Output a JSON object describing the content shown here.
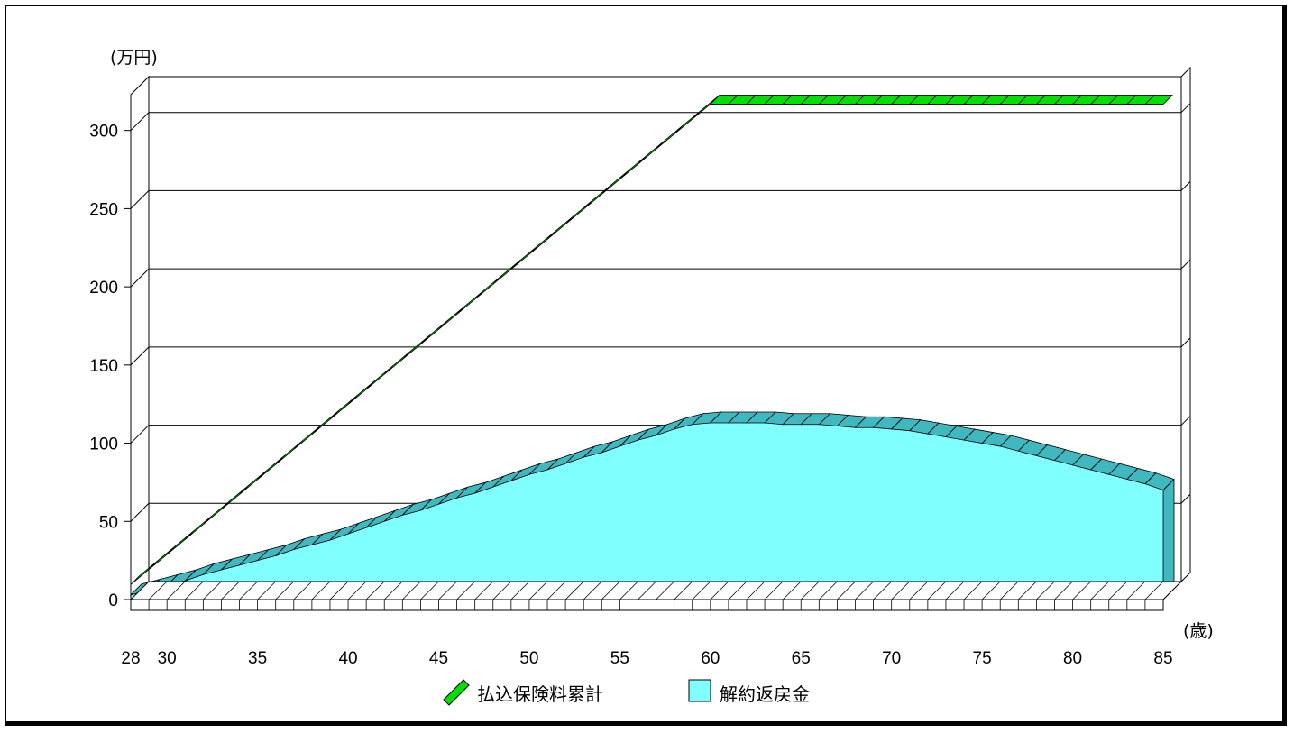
{
  "chart_data": {
    "type": "area",
    "ylabel_unit": "(万円)",
    "xlabel_unit": "(歳)",
    "ylim": [
      0,
      320
    ],
    "xlim": [
      28,
      85
    ],
    "y_ticks": [
      0,
      50,
      100,
      150,
      200,
      250,
      300
    ],
    "x_ticks": [
      28,
      30,
      35,
      40,
      45,
      50,
      55,
      60,
      65,
      70,
      75,
      80,
      85
    ],
    "series": [
      {
        "name": "払込保険料累計",
        "color": "#00e000",
        "x": [
          28,
          29,
          30,
          31,
          32,
          33,
          34,
          35,
          36,
          37,
          38,
          39,
          40,
          41,
          42,
          43,
          44,
          45,
          46,
          47,
          48,
          49,
          50,
          51,
          52,
          53,
          54,
          55,
          56,
          57,
          58,
          59,
          60,
          61,
          62,
          63,
          64,
          65,
          66,
          67,
          68,
          69,
          70,
          71,
          72,
          73,
          74,
          75,
          76,
          77,
          78,
          79,
          80,
          81,
          82,
          83,
          84,
          85
        ],
        "values": [
          9.6,
          19.2,
          28.8,
          38.4,
          48.0,
          57.6,
          67.2,
          76.8,
          86.4,
          96.0,
          105.6,
          115.2,
          124.8,
          134.4,
          144.0,
          153.6,
          163.2,
          172.8,
          182.4,
          192.0,
          201.6,
          211.2,
          220.8,
          230.4,
          240.0,
          249.6,
          259.2,
          268.8,
          278.4,
          288.0,
          297.6,
          307.2,
          316.8,
          316.8,
          316.8,
          316.8,
          316.8,
          316.8,
          316.8,
          316.8,
          316.8,
          316.8,
          316.8,
          316.8,
          316.8,
          316.8,
          316.8,
          316.8,
          316.8,
          316.8,
          316.8,
          316.8,
          316.8,
          316.8,
          316.8,
          316.8,
          316.8,
          316.8
        ]
      },
      {
        "name": "解約返戻金",
        "color": "#80ffff",
        "x": [
          28,
          29,
          30,
          31,
          32,
          33,
          34,
          35,
          36,
          37,
          38,
          39,
          40,
          41,
          42,
          43,
          44,
          45,
          46,
          47,
          48,
          49,
          50,
          51,
          52,
          53,
          54,
          55,
          56,
          57,
          58,
          59,
          60,
          61,
          62,
          63,
          64,
          65,
          66,
          67,
          68,
          69,
          70,
          71,
          72,
          73,
          74,
          75,
          76,
          77,
          78,
          79,
          80,
          81,
          82,
          83,
          84,
          85
        ],
        "values": [
          3,
          6,
          9,
          12,
          16,
          19,
          22,
          25,
          28,
          32,
          35,
          38,
          42,
          46,
          50,
          54,
          57,
          61,
          65,
          68,
          72,
          76,
          80,
          83,
          87,
          91,
          94,
          98,
          102,
          105,
          109,
          112,
          113,
          113,
          113,
          113,
          112,
          112,
          112,
          111,
          110,
          110,
          109,
          108,
          106,
          104,
          102,
          100,
          98,
          95,
          92,
          89,
          86,
          83,
          80,
          77,
          74,
          70
        ]
      }
    ]
  }
}
